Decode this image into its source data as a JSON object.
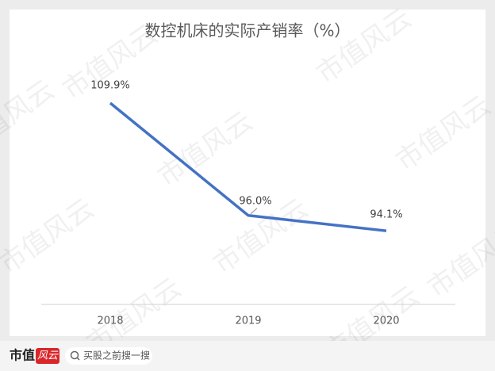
{
  "chart_data": {
    "type": "line",
    "title": "数控机床的实际产销率（%）",
    "categories": [
      "2018",
      "2019",
      "2020"
    ],
    "values": [
      109.9,
      96.0,
      94.1
    ],
    "value_labels": [
      "109.9%",
      "96.0%",
      "94.1%"
    ],
    "color": "#4472c4",
    "ylim": [
      85,
      115
    ]
  },
  "watermark": "市值风云",
  "footer": {
    "logo_main": "市值",
    "logo_accent": "风云",
    "search": "买股之前搜一搜"
  }
}
